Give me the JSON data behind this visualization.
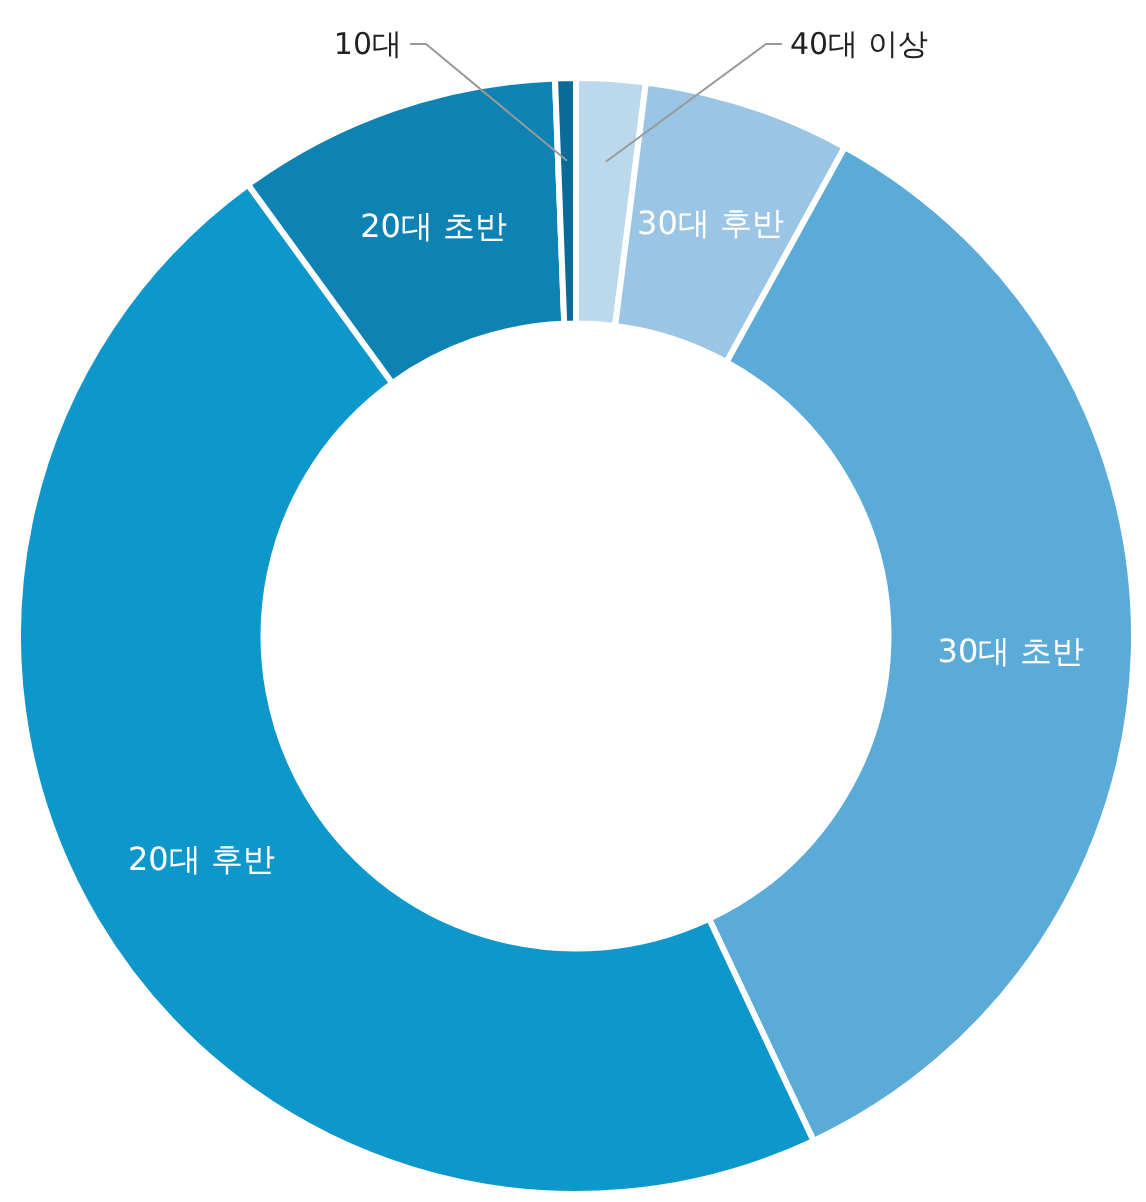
{
  "chart_data": {
    "type": "donut",
    "categories": [
      "40대 이상",
      "30대 후반",
      "30대 초반",
      "20대 후반",
      "20대 초반",
      "10대"
    ],
    "values": [
      2,
      6,
      35,
      47,
      9.4,
      0.6
    ],
    "colors": [
      "#bcd8ec",
      "#9ac5e5",
      "#5aabd8",
      "#0e97cb",
      "#0d82b3",
      "#0a6a9a"
    ]
  }
}
